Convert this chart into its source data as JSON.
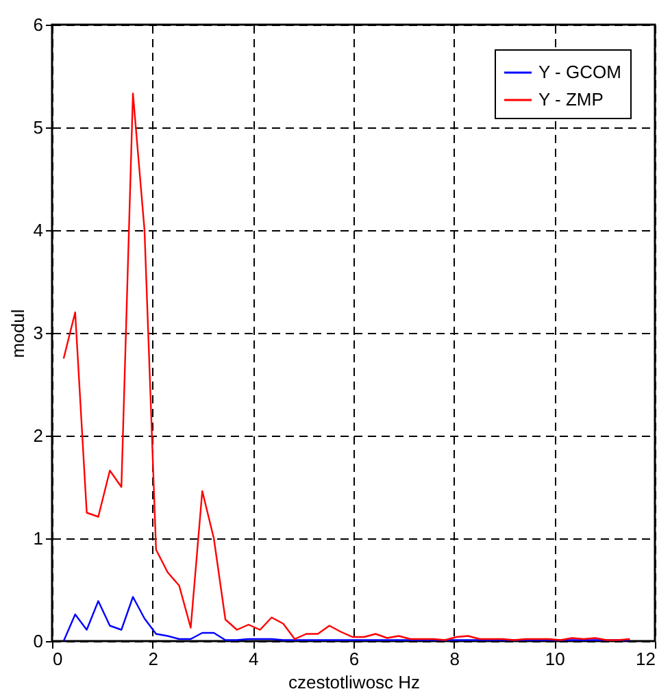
{
  "chart_data": {
    "type": "line",
    "xlabel": "czestotliwosc Hz",
    "ylabel": "modul",
    "x": [
      0.23,
      0.46,
      0.69,
      0.92,
      1.15,
      1.38,
      1.61,
      1.84,
      2.07,
      2.3,
      2.53,
      2.76,
      2.99,
      3.22,
      3.45,
      3.68,
      3.91,
      4.14,
      4.37,
      4.6,
      4.83,
      5.06,
      5.29,
      5.52,
      5.75,
      5.98,
      6.21,
      6.44,
      6.67,
      6.9,
      7.13,
      7.36,
      7.59,
      7.82,
      8.05,
      8.28,
      8.51,
      8.74,
      8.97,
      9.2,
      9.43,
      9.66,
      9.89,
      10.12,
      10.35,
      10.58,
      10.81,
      11.04,
      11.27,
      11.5
    ],
    "series": [
      {
        "name": "Y - GCOM",
        "color": "#0000ff",
        "values": [
          0,
          0.26,
          0.11,
          0.39,
          0.15,
          0.11,
          0.43,
          0.22,
          0.07,
          0.05,
          0.02,
          0.02,
          0.08,
          0.08,
          0.01,
          0.01,
          0.02,
          0.02,
          0.02,
          0.01,
          0.01,
          0.01,
          0.01,
          0.01,
          0.01,
          0.01,
          0.01,
          0.01,
          0.01,
          0.01,
          0.01,
          0.01,
          0.01,
          0.01,
          0.01,
          0.01,
          0.01,
          0.01,
          0.01,
          0.01,
          0.01,
          0.01,
          0.01,
          0.01,
          0.01,
          0.01,
          0.01,
          0.01,
          0.01,
          0.01
        ]
      },
      {
        "name": "Y - ZMP",
        "color": "#ff0000",
        "values": [
          2.75,
          3.2,
          1.25,
          1.21,
          1.66,
          1.5,
          5.33,
          4.0,
          0.89,
          0.67,
          0.54,
          0.13,
          1.46,
          1.0,
          0.21,
          0.11,
          0.16,
          0.11,
          0.23,
          0.17,
          0.02,
          0.07,
          0.07,
          0.15,
          0.09,
          0.04,
          0.04,
          0.07,
          0.03,
          0.05,
          0.02,
          0.02,
          0.02,
          0.01,
          0.04,
          0.05,
          0.02,
          0.02,
          0.02,
          0.01,
          0.02,
          0.02,
          0.02,
          0.01,
          0.03,
          0.02,
          0.03,
          0.01,
          0.01,
          0.02
        ]
      }
    ],
    "xlim": [
      0,
      12
    ],
    "xticks": [
      0,
      2,
      4,
      6,
      8,
      10,
      12
    ],
    "ylim": [
      0,
      6
    ],
    "yticks": [
      0,
      1,
      2,
      3,
      4,
      5,
      6
    ],
    "grid": true,
    "legend": "top right",
    "line_style": "solid",
    "marker": "none"
  }
}
